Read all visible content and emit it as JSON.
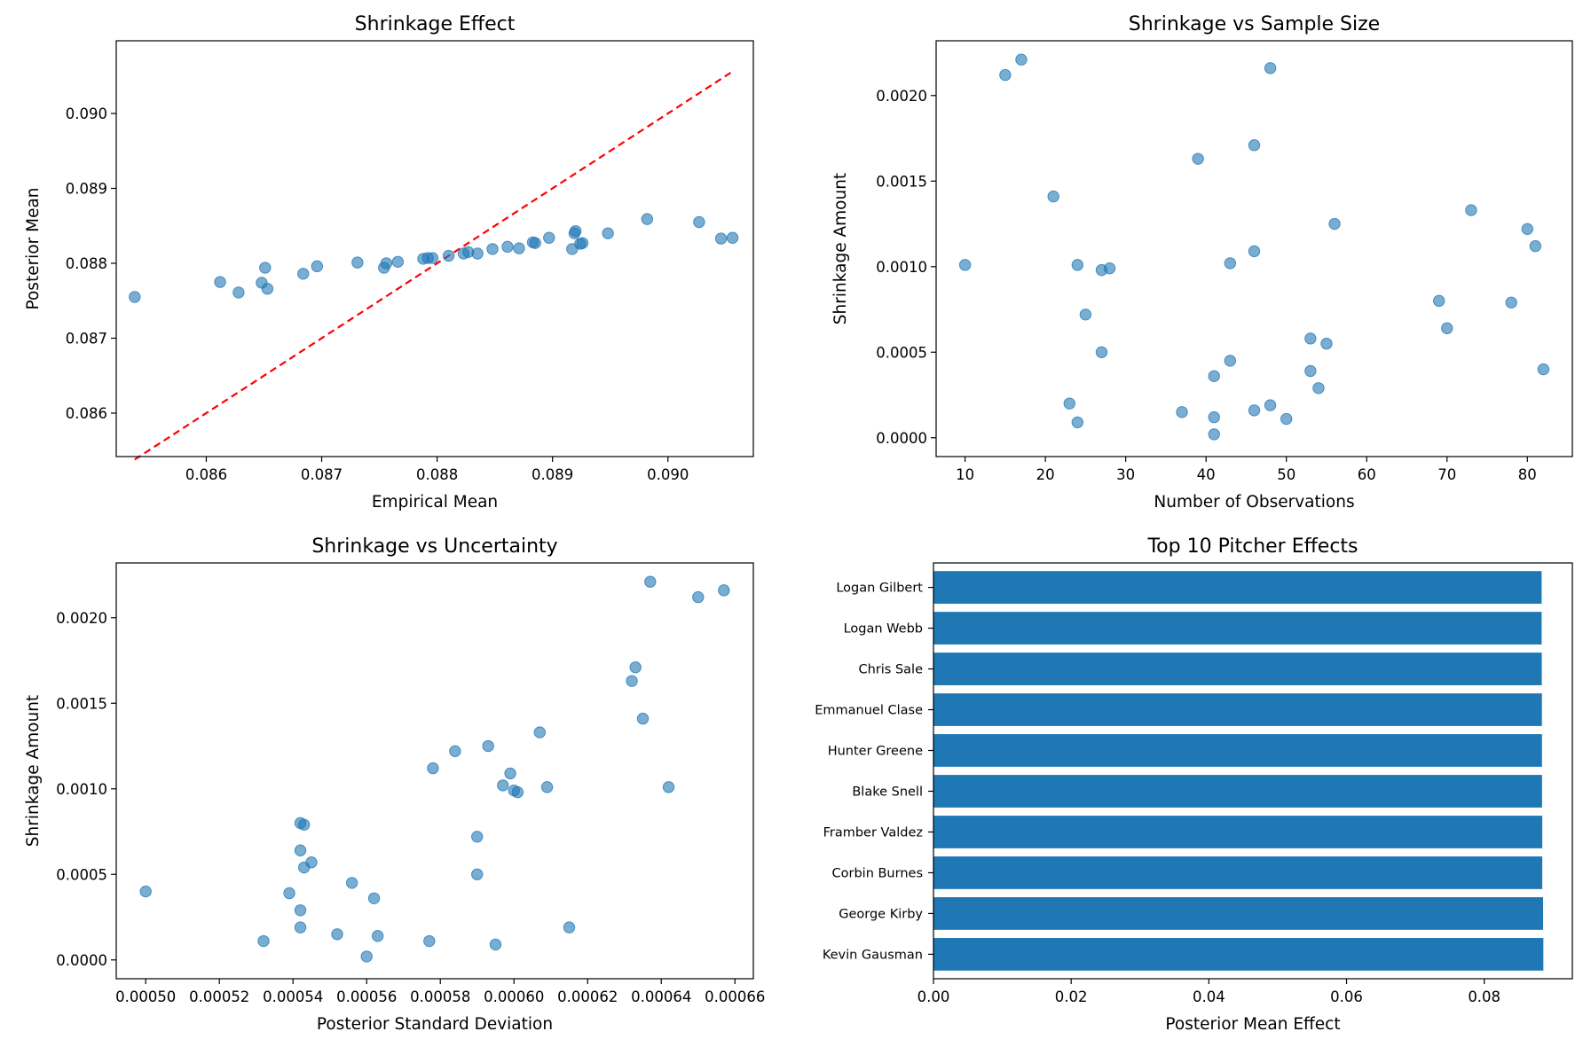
{
  "colors": {
    "point": "#1f77b4",
    "bar": "#1f77b4",
    "identity_line": "#ff0000",
    "axes": "#000000"
  },
  "chart_data": [
    {
      "type": "scatter",
      "title": "Shrinkage Effect",
      "xlabel": "Empirical Mean",
      "ylabel": "Posterior Mean",
      "xlim": [
        0.08522,
        0.09074
      ],
      "ylim": [
        0.08542,
        0.09097
      ],
      "xticks": [
        0.086,
        0.087,
        0.088,
        0.089,
        0.09
      ],
      "xtick_labels": [
        "0.086",
        "0.087",
        "0.088",
        "0.089",
        "0.090"
      ],
      "yticks": [
        0.086,
        0.087,
        0.088,
        0.089,
        0.09
      ],
      "ytick_labels": [
        "0.086",
        "0.087",
        "0.088",
        "0.089",
        "0.090"
      ],
      "grid": false,
      "reference_line": {
        "style": "dashed",
        "color": "red",
        "from": [
          0.08538,
          0.08538
        ],
        "to": [
          0.09056,
          0.09056
        ]
      },
      "x": [
        0.08538,
        0.08612,
        0.08628,
        0.08648,
        0.08651,
        0.08653,
        0.08684,
        0.08696,
        0.08731,
        0.08754,
        0.08756,
        0.08766,
        0.08788,
        0.08792,
        0.08796,
        0.0881,
        0.08823,
        0.08827,
        0.08835,
        0.08848,
        0.08861,
        0.08871,
        0.08883,
        0.08885,
        0.08897,
        0.08917,
        0.08919,
        0.0892,
        0.08924,
        0.08926,
        0.08948,
        0.08982,
        0.09027,
        0.09046,
        0.09056
      ],
      "y": [
        0.08755,
        0.08775,
        0.08761,
        0.08774,
        0.08794,
        0.08766,
        0.08786,
        0.08796,
        0.08801,
        0.08794,
        0.088,
        0.08802,
        0.08806,
        0.08807,
        0.08807,
        0.0881,
        0.08813,
        0.08815,
        0.08813,
        0.08819,
        0.08822,
        0.0882,
        0.08828,
        0.08827,
        0.08834,
        0.08819,
        0.0884,
        0.08843,
        0.08826,
        0.08827,
        0.0884,
        0.08859,
        0.08855,
        0.08833,
        0.08834
      ]
    },
    {
      "type": "scatter",
      "title": "Shrinkage vs Sample Size",
      "xlabel": "Number of Observations",
      "ylabel": "Shrinkage Amount",
      "xlim": [
        6.4,
        85.6
      ],
      "ylim": [
        -0.00011,
        0.00232
      ],
      "xticks": [
        10,
        20,
        30,
        40,
        50,
        60,
        70,
        80
      ],
      "xtick_labels": [
        "10",
        "20",
        "30",
        "40",
        "50",
        "60",
        "70",
        "80"
      ],
      "yticks": [
        0.0,
        0.0005,
        0.001,
        0.0015,
        0.002
      ],
      "ytick_labels": [
        "0.0000",
        "0.0005",
        "0.0010",
        "0.0015",
        "0.0020"
      ],
      "grid": false,
      "x": [
        10,
        15,
        17,
        21,
        23,
        24,
        24,
        25,
        27,
        27,
        28,
        37,
        39,
        41,
        41,
        41,
        43,
        43,
        46,
        46,
        46,
        48,
        48,
        50,
        53,
        53,
        54,
        55,
        56,
        69,
        70,
        73,
        78,
        80,
        81,
        82
      ],
      "y": [
        0.00101,
        0.00212,
        0.00221,
        0.00141,
        0.0002,
        0.00101,
        9e-05,
        0.00072,
        0.0005,
        0.00098,
        0.00099,
        0.00015,
        0.00163,
        0.00036,
        0.00012,
        2e-05,
        0.00102,
        0.00045,
        0.00171,
        0.00109,
        0.00016,
        0.00216,
        0.00019,
        0.00011,
        0.00058,
        0.00039,
        0.00029,
        0.00055,
        0.00125,
        0.0008,
        0.00064,
        0.00133,
        0.00079,
        0.00122,
        0.00112,
        0.0004
      ]
    },
    {
      "type": "scatter",
      "title": "Shrinkage vs Uncertainty",
      "xlabel": "Posterior Standard Deviation",
      "ylabel": "Shrinkage Amount",
      "xlim": [
        0.000492,
        0.000665
      ],
      "ylim": [
        -0.00011,
        0.00232
      ],
      "xticks": [
        0.0005,
        0.00052,
        0.00054,
        0.00056,
        0.00058,
        0.0006,
        0.00062,
        0.00064,
        0.00066
      ],
      "xtick_labels": [
        "0.00050",
        "0.00052",
        "0.00054",
        "0.00056",
        "0.00058",
        "0.00060",
        "0.00062",
        "0.00064",
        "0.00066"
      ],
      "yticks": [
        0.0,
        0.0005,
        0.001,
        0.0015,
        0.002
      ],
      "ytick_labels": [
        "0.0000",
        "0.0005",
        "0.0010",
        "0.0015",
        "0.0020"
      ],
      "grid": false,
      "x": [
        0.0005,
        0.000532,
        0.000539,
        0.000542,
        0.000542,
        0.000542,
        0.000542,
        0.000543,
        0.000543,
        0.000545,
        0.000552,
        0.000556,
        0.00056,
        0.000562,
        0.000563,
        0.000577,
        0.000578,
        0.000584,
        0.00059,
        0.00059,
        0.000593,
        0.000595,
        0.000597,
        0.000599,
        0.0006,
        0.000601,
        0.000607,
        0.000609,
        0.000615,
        0.000632,
        0.000633,
        0.000635,
        0.000637,
        0.000642,
        0.00065,
        0.000657
      ],
      "y": [
        0.0004,
        0.00011,
        0.00039,
        0.00019,
        0.00029,
        0.00064,
        0.0008,
        0.00079,
        0.00054,
        0.00057,
        0.00015,
        0.00045,
        2e-05,
        0.00036,
        0.00014,
        0.00011,
        0.00112,
        0.00122,
        0.00072,
        0.0005,
        0.00125,
        9e-05,
        0.00102,
        0.00109,
        0.00099,
        0.00098,
        0.00133,
        0.00101,
        0.00019,
        0.00163,
        0.00171,
        0.00141,
        0.00221,
        0.00101,
        0.00212,
        0.00216
      ]
    },
    {
      "type": "bar",
      "orientation": "horizontal",
      "title": "Top 10 Pitcher Effects",
      "xlabel": "Posterior Mean Effect",
      "ylabel": "",
      "xlim": [
        0,
        0.0928
      ],
      "xticks": [
        0.0,
        0.02,
        0.04,
        0.06,
        0.08
      ],
      "xtick_labels": [
        "0.00",
        "0.02",
        "0.04",
        "0.06",
        "0.08"
      ],
      "grid": false,
      "categories": [
        "Logan Gilbert",
        "Logan Webb",
        "Chris Sale",
        "Emmanuel Clase",
        "Hunter Greene",
        "Blake Snell",
        "Framber Valdez",
        "Corbin Burnes",
        "George Kirby",
        "Kevin Gausman"
      ],
      "values": [
        0.08834,
        0.08834,
        0.08836,
        0.08838,
        0.08839,
        0.0884,
        0.08843,
        0.08843,
        0.08855,
        0.08859
      ]
    }
  ]
}
